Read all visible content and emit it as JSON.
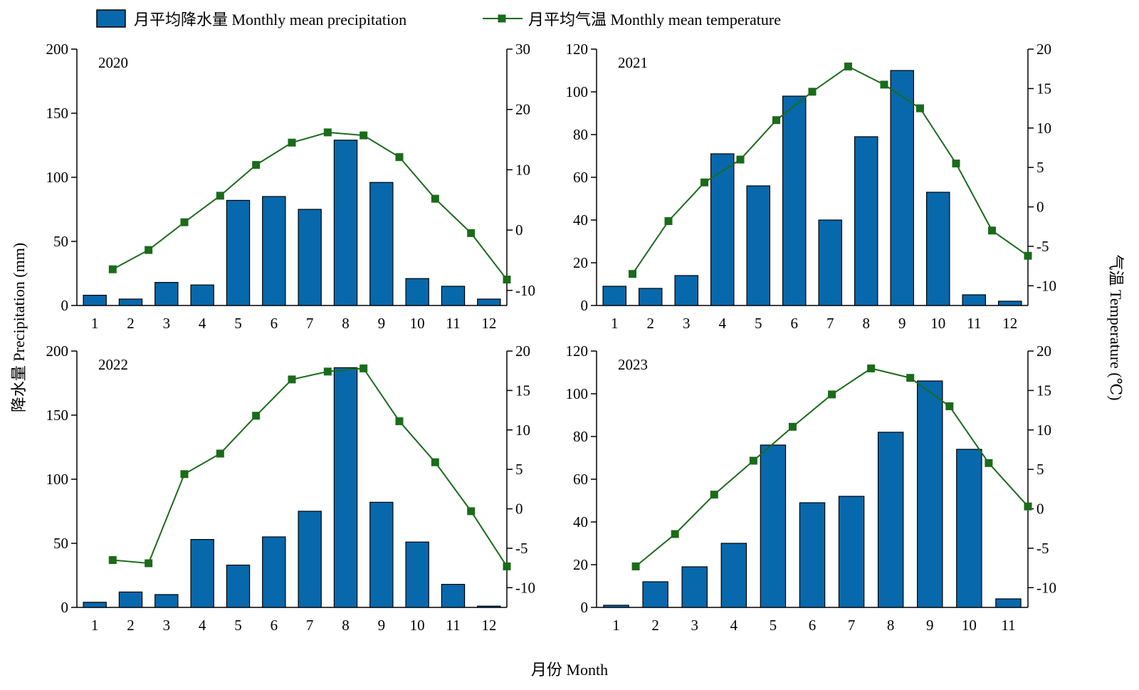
{
  "chart_data": {
    "type": "bar+line",
    "legend": {
      "position": "top",
      "items": [
        {
          "label": "月平均降水量 Monthly mean precipitation",
          "kind": "bar",
          "color": "#0868ac"
        },
        {
          "label": "月平均气温 Monthly mean temperature",
          "kind": "line-square",
          "color": "#1a6b1a"
        }
      ]
    },
    "xlabel": "月份 Month",
    "ylabel_left": "降水量 Precipitation (mm)",
    "ylabel_right": "气温 Temperature (℃)",
    "colors": {
      "bar_fill": "#0868ac",
      "bar_stroke": "#000000",
      "line": "#1a6b1a",
      "marker": "#1a6b1a"
    },
    "panels": [
      {
        "year": "2020",
        "months": [
          "1",
          "2",
          "3",
          "4",
          "5",
          "6",
          "7",
          "8",
          "9",
          "10",
          "11",
          "12"
        ],
        "precip_ticks": [
          0,
          50,
          100,
          150,
          200
        ],
        "precip_ylim": [
          0,
          200
        ],
        "temp_ticks": [
          -10,
          0,
          10,
          20,
          30
        ],
        "temp_ylim": [
          -12.5,
          30
        ],
        "precipitation": [
          8,
          5,
          18,
          16,
          82,
          85,
          75,
          129,
          96,
          21,
          15,
          5
        ],
        "temperature": [
          -6.5,
          -3.3,
          1.3,
          5.7,
          10.8,
          14.5,
          16.2,
          15.7,
          12.1,
          5.2,
          -0.5,
          -8.2
        ]
      },
      {
        "year": "2021",
        "months": [
          "1",
          "2",
          "3",
          "4",
          "5",
          "6",
          "7",
          "8",
          "9",
          "10",
          "11",
          "12"
        ],
        "precip_ticks": [
          0,
          20,
          40,
          60,
          80,
          100,
          120
        ],
        "precip_ylim": [
          0,
          120
        ],
        "temp_ticks": [
          -10,
          -5,
          0,
          5,
          10,
          15,
          20
        ],
        "temp_ylim": [
          -12.5,
          20
        ],
        "precipitation": [
          9,
          8,
          14,
          71,
          56,
          98,
          40,
          79,
          110,
          53,
          5,
          2
        ],
        "temperature": [
          -8.5,
          -1.8,
          3.1,
          6.0,
          11.0,
          14.6,
          17.8,
          15.5,
          12.5,
          5.5,
          -3.0,
          -6.2
        ]
      },
      {
        "year": "2022",
        "months": [
          "1",
          "2",
          "3",
          "4",
          "5",
          "6",
          "7",
          "8",
          "9",
          "10",
          "11",
          "12"
        ],
        "precip_ticks": [
          0,
          50,
          100,
          150,
          200
        ],
        "precip_ylim": [
          0,
          200
        ],
        "temp_ticks": [
          -10,
          -5,
          0,
          5,
          10,
          15,
          20
        ],
        "temp_ylim": [
          -12.5,
          20
        ],
        "precipitation": [
          4,
          12,
          10,
          53,
          33,
          55,
          75,
          187,
          82,
          51,
          18,
          1
        ],
        "temperature": [
          -6.5,
          -6.9,
          4.4,
          7.0,
          11.8,
          16.4,
          17.4,
          17.8,
          11.1,
          5.9,
          -0.3,
          -7.3
        ]
      },
      {
        "year": "2023",
        "months": [
          "1",
          "2",
          "3",
          "4",
          "5",
          "6",
          "7",
          "8",
          "9",
          "10",
          "11"
        ],
        "precip_ticks": [
          0,
          20,
          40,
          60,
          80,
          100,
          120
        ],
        "precip_ylim": [
          0,
          120
        ],
        "temp_ticks": [
          -10,
          -5,
          0,
          5,
          10,
          15,
          20
        ],
        "temp_ylim": [
          -12.5,
          20
        ],
        "precipitation": [
          1,
          12,
          19,
          30,
          76,
          49,
          52,
          82,
          106,
          74,
          4
        ],
        "temperature": [
          -7.3,
          -3.2,
          1.8,
          6.1,
          10.4,
          14.5,
          17.8,
          16.6,
          13.0,
          5.8,
          0.3
        ]
      }
    ]
  }
}
